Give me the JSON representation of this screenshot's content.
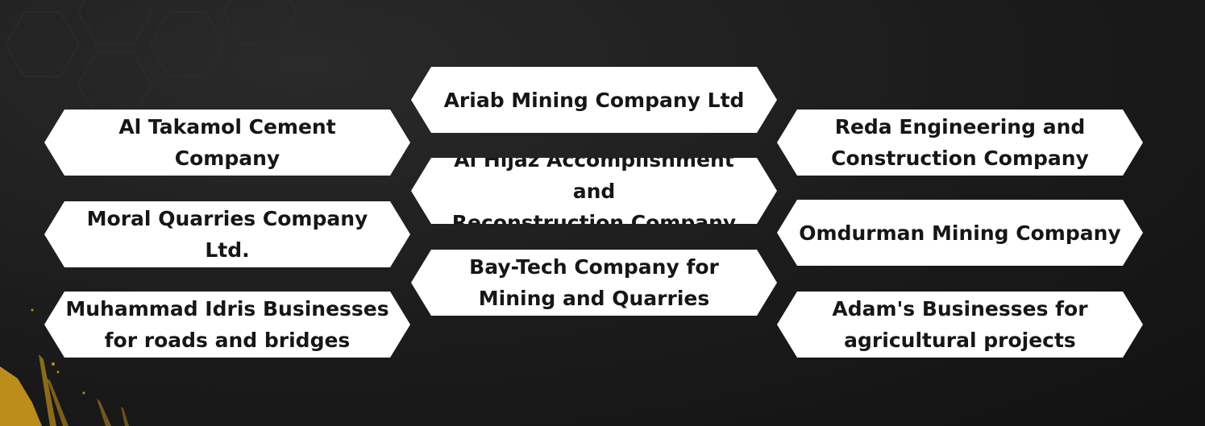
{
  "tiles": [
    {
      "id": "ariab",
      "text": "Ariab Mining Company Ltd"
    },
    {
      "id": "al-takamol",
      "text": "Al Takamol Cement Company"
    },
    {
      "id": "reda",
      "text": "Reda Engineering and\nConstruction Company"
    },
    {
      "id": "al-hijaz",
      "text": "Al Hijaz Accomplishment and\nReconstruction Company"
    },
    {
      "id": "moral",
      "text": "Moral Quarries Company Ltd."
    },
    {
      "id": "omdurman",
      "text": "Omdurman Mining Company"
    },
    {
      "id": "bay-tech",
      "text": "Bay-Tech Company for\nMining and Quarries"
    },
    {
      "id": "muhammad-idris",
      "text": "Muhammad Idris Businesses\nfor roads and bridges"
    },
    {
      "id": "adam",
      "text": "Adam's Businesses for\nagricultural projects"
    }
  ],
  "colors": {
    "background": "#1b1b1b",
    "tile_fill": "#ffffff",
    "tile_text": "#161616",
    "accent_gold": "#d9a21b"
  }
}
